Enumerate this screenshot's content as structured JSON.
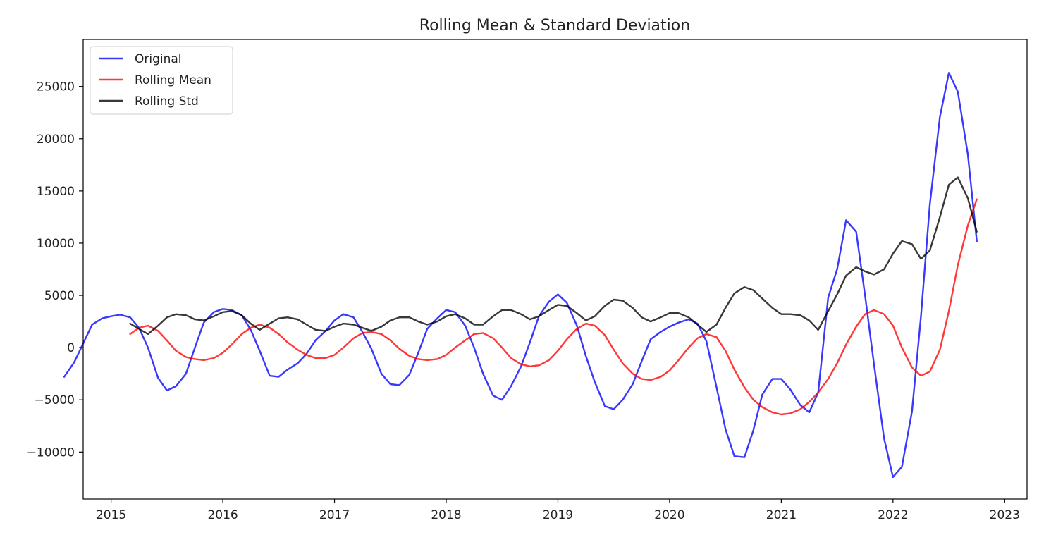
{
  "chart_data": {
    "type": "line",
    "title": "Rolling Mean & Standard Deviation",
    "xlabel": "",
    "ylabel": "",
    "xlim": [
      2014.75,
      2023.2
    ],
    "ylim": [
      -14500,
      29500
    ],
    "grid": false,
    "legend_position": "upper-left",
    "x_ticks": [
      2015,
      2016,
      2017,
      2018,
      2019,
      2020,
      2021,
      2022,
      2023
    ],
    "x_tick_labels": [
      "2015",
      "2016",
      "2017",
      "2018",
      "2019",
      "2020",
      "2021",
      "2022",
      "2023"
    ],
    "y_ticks": [
      -10000,
      -5000,
      0,
      5000,
      10000,
      15000,
      20000,
      25000
    ],
    "y_tick_labels": [
      "−10000",
      "−5000",
      "0",
      "5000",
      "10000",
      "15000",
      "20000",
      "25000"
    ],
    "series": [
      {
        "name": "Original",
        "color": "#0000ff",
        "points": [
          [
            2014.58,
            -2800
          ],
          [
            2014.67,
            -1400
          ],
          [
            2014.75,
            400
          ],
          [
            2014.83,
            2200
          ],
          [
            2014.92,
            2800
          ],
          [
            2015.0,
            3000
          ],
          [
            2015.08,
            3150
          ],
          [
            2015.17,
            2900
          ],
          [
            2015.25,
            1900
          ],
          [
            2015.33,
            0
          ],
          [
            2015.42,
            -2900
          ],
          [
            2015.5,
            -4100
          ],
          [
            2015.58,
            -3700
          ],
          [
            2015.67,
            -2500
          ],
          [
            2015.75,
            0
          ],
          [
            2015.83,
            2400
          ],
          [
            2015.92,
            3400
          ],
          [
            2016.0,
            3700
          ],
          [
            2016.08,
            3600
          ],
          [
            2016.17,
            3100
          ],
          [
            2016.25,
            1700
          ],
          [
            2016.33,
            -300
          ],
          [
            2016.42,
            -2700
          ],
          [
            2016.5,
            -2800
          ],
          [
            2016.58,
            -2100
          ],
          [
            2016.67,
            -1500
          ],
          [
            2016.75,
            -600
          ],
          [
            2016.83,
            700
          ],
          [
            2016.92,
            1600
          ],
          [
            2017.0,
            2600
          ],
          [
            2017.08,
            3200
          ],
          [
            2017.17,
            2900
          ],
          [
            2017.25,
            1500
          ],
          [
            2017.33,
            -100
          ],
          [
            2017.42,
            -2500
          ],
          [
            2017.5,
            -3500
          ],
          [
            2017.58,
            -3600
          ],
          [
            2017.67,
            -2600
          ],
          [
            2017.75,
            -500
          ],
          [
            2017.83,
            1800
          ],
          [
            2017.92,
            2800
          ],
          [
            2018.0,
            3600
          ],
          [
            2018.08,
            3400
          ],
          [
            2018.17,
            2100
          ],
          [
            2018.25,
            0
          ],
          [
            2018.33,
            -2500
          ],
          [
            2018.42,
            -4600
          ],
          [
            2018.5,
            -5000
          ],
          [
            2018.58,
            -3700
          ],
          [
            2018.67,
            -1800
          ],
          [
            2018.75,
            500
          ],
          [
            2018.83,
            3000
          ],
          [
            2018.92,
            4400
          ],
          [
            2019.0,
            5100
          ],
          [
            2019.08,
            4300
          ],
          [
            2019.17,
            2100
          ],
          [
            2019.25,
            -800
          ],
          [
            2019.33,
            -3300
          ],
          [
            2019.42,
            -5600
          ],
          [
            2019.5,
            -5900
          ],
          [
            2019.58,
            -5000
          ],
          [
            2019.67,
            -3500
          ],
          [
            2019.75,
            -1300
          ],
          [
            2019.83,
            800
          ],
          [
            2019.92,
            1500
          ],
          [
            2020.0,
            2000
          ],
          [
            2020.08,
            2400
          ],
          [
            2020.17,
            2700
          ],
          [
            2020.25,
            2300
          ],
          [
            2020.33,
            600
          ],
          [
            2020.42,
            -3800
          ],
          [
            2020.5,
            -7800
          ],
          [
            2020.58,
            -10400
          ],
          [
            2020.67,
            -10500
          ],
          [
            2020.75,
            -7900
          ],
          [
            2020.83,
            -4500
          ],
          [
            2020.92,
            -3000
          ],
          [
            2021.0,
            -3000
          ],
          [
            2021.08,
            -4000
          ],
          [
            2021.17,
            -5500
          ],
          [
            2021.25,
            -6200
          ],
          [
            2021.33,
            -4300
          ],
          [
            2021.42,
            4800
          ],
          [
            2021.5,
            7500
          ],
          [
            2021.58,
            12200
          ],
          [
            2021.67,
            11100
          ],
          [
            2021.75,
            5000
          ],
          [
            2021.83,
            -1600
          ],
          [
            2021.92,
            -8700
          ],
          [
            2022.0,
            -12400
          ],
          [
            2022.08,
            -11400
          ],
          [
            2022.17,
            -6100
          ],
          [
            2022.25,
            3000
          ],
          [
            2022.33,
            13700
          ],
          [
            2022.42,
            22100
          ],
          [
            2022.5,
            26300
          ],
          [
            2022.58,
            24500
          ],
          [
            2022.67,
            18500
          ],
          [
            2022.75,
            10200
          ]
        ]
      },
      {
        "name": "Rolling Mean",
        "color": "#ff0000",
        "points": [
          [
            2015.17,
            1300
          ],
          [
            2015.25,
            1900
          ],
          [
            2015.33,
            2100
          ],
          [
            2015.42,
            1600
          ],
          [
            2015.5,
            700
          ],
          [
            2015.58,
            -300
          ],
          [
            2015.67,
            -900
          ],
          [
            2015.75,
            -1100
          ],
          [
            2015.83,
            -1200
          ],
          [
            2015.92,
            -1000
          ],
          [
            2016.0,
            -500
          ],
          [
            2016.08,
            300
          ],
          [
            2016.17,
            1300
          ],
          [
            2016.25,
            1900
          ],
          [
            2016.33,
            2200
          ],
          [
            2016.42,
            1900
          ],
          [
            2016.5,
            1300
          ],
          [
            2016.58,
            500
          ],
          [
            2016.67,
            -200
          ],
          [
            2016.75,
            -700
          ],
          [
            2016.83,
            -1000
          ],
          [
            2016.92,
            -1000
          ],
          [
            2017.0,
            -700
          ],
          [
            2017.08,
            0
          ],
          [
            2017.17,
            900
          ],
          [
            2017.25,
            1400
          ],
          [
            2017.33,
            1500
          ],
          [
            2017.42,
            1300
          ],
          [
            2017.5,
            700
          ],
          [
            2017.58,
            -100
          ],
          [
            2017.67,
            -800
          ],
          [
            2017.75,
            -1100
          ],
          [
            2017.83,
            -1200
          ],
          [
            2017.92,
            -1100
          ],
          [
            2018.0,
            -700
          ],
          [
            2018.08,
            0
          ],
          [
            2018.17,
            700
          ],
          [
            2018.25,
            1300
          ],
          [
            2018.33,
            1400
          ],
          [
            2018.42,
            900
          ],
          [
            2018.5,
            0
          ],
          [
            2018.58,
            -1000
          ],
          [
            2018.67,
            -1600
          ],
          [
            2018.75,
            -1800
          ],
          [
            2018.83,
            -1700
          ],
          [
            2018.92,
            -1200
          ],
          [
            2019.0,
            -300
          ],
          [
            2019.08,
            800
          ],
          [
            2019.17,
            1800
          ],
          [
            2019.25,
            2300
          ],
          [
            2019.33,
            2100
          ],
          [
            2019.42,
            1200
          ],
          [
            2019.5,
            -200
          ],
          [
            2019.58,
            -1500
          ],
          [
            2019.67,
            -2500
          ],
          [
            2019.75,
            -3000
          ],
          [
            2019.83,
            -3100
          ],
          [
            2019.92,
            -2800
          ],
          [
            2020.0,
            -2200
          ],
          [
            2020.08,
            -1200
          ],
          [
            2020.17,
            0
          ],
          [
            2020.25,
            900
          ],
          [
            2020.33,
            1300
          ],
          [
            2020.42,
            1000
          ],
          [
            2020.5,
            -300
          ],
          [
            2020.58,
            -2100
          ],
          [
            2020.67,
            -3800
          ],
          [
            2020.75,
            -5000
          ],
          [
            2020.83,
            -5700
          ],
          [
            2020.92,
            -6200
          ],
          [
            2021.0,
            -6400
          ],
          [
            2021.08,
            -6300
          ],
          [
            2021.17,
            -5900
          ],
          [
            2021.25,
            -5200
          ],
          [
            2021.33,
            -4300
          ],
          [
            2021.42,
            -3000
          ],
          [
            2021.5,
            -1500
          ],
          [
            2021.58,
            300
          ],
          [
            2021.67,
            2000
          ],
          [
            2021.75,
            3200
          ],
          [
            2021.83,
            3600
          ],
          [
            2021.92,
            3200
          ],
          [
            2022.0,
            2100
          ],
          [
            2022.08,
            0
          ],
          [
            2022.17,
            -1900
          ],
          [
            2022.25,
            -2700
          ],
          [
            2022.33,
            -2300
          ],
          [
            2022.42,
            -200
          ],
          [
            2022.5,
            3500
          ],
          [
            2022.58,
            7900
          ],
          [
            2022.67,
            11700
          ],
          [
            2022.75,
            14200
          ]
        ]
      },
      {
        "name": "Rolling Std",
        "color": "#000000",
        "points": [
          [
            2015.17,
            2300
          ],
          [
            2015.25,
            1800
          ],
          [
            2015.33,
            1300
          ],
          [
            2015.42,
            2100
          ],
          [
            2015.5,
            2900
          ],
          [
            2015.58,
            3200
          ],
          [
            2015.67,
            3100
          ],
          [
            2015.75,
            2700
          ],
          [
            2015.83,
            2600
          ],
          [
            2015.92,
            3000
          ],
          [
            2016.0,
            3400
          ],
          [
            2016.08,
            3500
          ],
          [
            2016.17,
            3100
          ],
          [
            2016.25,
            2300
          ],
          [
            2016.33,
            1700
          ],
          [
            2016.42,
            2300
          ],
          [
            2016.5,
            2800
          ],
          [
            2016.58,
            2900
          ],
          [
            2016.67,
            2700
          ],
          [
            2016.75,
            2200
          ],
          [
            2016.83,
            1700
          ],
          [
            2016.92,
            1600
          ],
          [
            2017.0,
            2000
          ],
          [
            2017.08,
            2300
          ],
          [
            2017.17,
            2200
          ],
          [
            2017.25,
            1900
          ],
          [
            2017.33,
            1600
          ],
          [
            2017.42,
            2000
          ],
          [
            2017.5,
            2600
          ],
          [
            2017.58,
            2900
          ],
          [
            2017.67,
            2900
          ],
          [
            2017.75,
            2500
          ],
          [
            2017.83,
            2200
          ],
          [
            2017.92,
            2500
          ],
          [
            2018.0,
            3000
          ],
          [
            2018.08,
            3200
          ],
          [
            2018.17,
            2800
          ],
          [
            2018.25,
            2200
          ],
          [
            2018.33,
            2200
          ],
          [
            2018.42,
            3000
          ],
          [
            2018.5,
            3600
          ],
          [
            2018.58,
            3600
          ],
          [
            2018.67,
            3200
          ],
          [
            2018.75,
            2700
          ],
          [
            2018.83,
            3000
          ],
          [
            2018.92,
            3600
          ],
          [
            2019.0,
            4100
          ],
          [
            2019.08,
            4000
          ],
          [
            2019.17,
            3300
          ],
          [
            2019.25,
            2600
          ],
          [
            2019.33,
            3000
          ],
          [
            2019.42,
            4000
          ],
          [
            2019.5,
            4600
          ],
          [
            2019.58,
            4500
          ],
          [
            2019.67,
            3800
          ],
          [
            2019.75,
            2900
          ],
          [
            2019.83,
            2500
          ],
          [
            2019.92,
            2900
          ],
          [
            2020.0,
            3300
          ],
          [
            2020.08,
            3300
          ],
          [
            2020.17,
            2900
          ],
          [
            2020.25,
            2200
          ],
          [
            2020.33,
            1500
          ],
          [
            2020.42,
            2200
          ],
          [
            2020.5,
            3800
          ],
          [
            2020.58,
            5200
          ],
          [
            2020.67,
            5800
          ],
          [
            2020.75,
            5500
          ],
          [
            2020.83,
            4700
          ],
          [
            2020.92,
            3800
          ],
          [
            2021.0,
            3200
          ],
          [
            2021.08,
            3200
          ],
          [
            2021.17,
            3100
          ],
          [
            2021.25,
            2600
          ],
          [
            2021.33,
            1700
          ],
          [
            2021.42,
            3500
          ],
          [
            2021.5,
            5100
          ],
          [
            2021.58,
            6900
          ],
          [
            2021.67,
            7700
          ],
          [
            2021.75,
            7300
          ],
          [
            2021.83,
            7000
          ],
          [
            2021.92,
            7500
          ],
          [
            2022.0,
            9000
          ],
          [
            2022.08,
            10200
          ],
          [
            2022.17,
            9900
          ],
          [
            2022.25,
            8500
          ],
          [
            2022.33,
            9300
          ],
          [
            2022.42,
            12500
          ],
          [
            2022.5,
            15600
          ],
          [
            2022.58,
            16300
          ],
          [
            2022.67,
            14300
          ],
          [
            2022.75,
            11100
          ]
        ]
      }
    ]
  }
}
